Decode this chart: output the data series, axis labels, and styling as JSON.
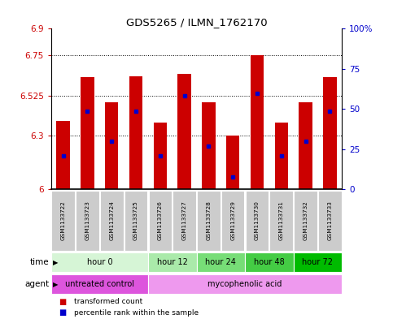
{
  "title": "GDS5265 / ILMN_1762170",
  "samples": [
    "GSM1133722",
    "GSM1133723",
    "GSM1133724",
    "GSM1133725",
    "GSM1133726",
    "GSM1133727",
    "GSM1133728",
    "GSM1133729",
    "GSM1133730",
    "GSM1133731",
    "GSM1133732",
    "GSM1133733"
  ],
  "bar_values": [
    6.385,
    6.63,
    6.49,
    6.635,
    6.375,
    6.645,
    6.49,
    6.3,
    6.75,
    6.375,
    6.49,
    6.63
  ],
  "bar_base": 6.0,
  "blue_dot_values": [
    6.19,
    6.44,
    6.27,
    6.44,
    6.19,
    6.525,
    6.245,
    6.07,
    6.54,
    6.19,
    6.27,
    6.44
  ],
  "ylim": [
    6.0,
    6.9
  ],
  "yticks_left": [
    6.0,
    6.3,
    6.525,
    6.75,
    6.9
  ],
  "ytick_labels_left": [
    "6",
    "6.3",
    "6.525",
    "6.75",
    "6.9"
  ],
  "yticks_right": [
    6.0,
    6.225,
    6.45,
    6.675,
    6.9
  ],
  "ytick_labels_right": [
    "0",
    "25",
    "50",
    "75",
    "100%"
  ],
  "bar_color": "#cc0000",
  "dot_color": "#0000cc",
  "time_groups": [
    {
      "label": "hour 0",
      "start": 0,
      "end": 4,
      "color": "#d6f5d6"
    },
    {
      "label": "hour 12",
      "start": 4,
      "end": 6,
      "color": "#aaeaaa"
    },
    {
      "label": "hour 24",
      "start": 6,
      "end": 8,
      "color": "#77dd77"
    },
    {
      "label": "hour 48",
      "start": 8,
      "end": 10,
      "color": "#44cc44"
    },
    {
      "label": "hour 72",
      "start": 10,
      "end": 12,
      "color": "#00bb00"
    }
  ],
  "agent_groups": [
    {
      "label": "untreated control",
      "start": 0,
      "end": 4,
      "color": "#dd55dd"
    },
    {
      "label": "mycophenolic acid",
      "start": 4,
      "end": 12,
      "color": "#ee99ee"
    }
  ],
  "legend_red": "transformed count",
  "legend_blue": "percentile rank within the sample",
  "time_label": "time",
  "agent_label": "agent",
  "bar_width": 0.55,
  "tick_label_color_left": "#cc0000",
  "tick_label_color_right": "#0000cc",
  "label_cell_color": "#cccccc",
  "background_color": "#ffffff"
}
